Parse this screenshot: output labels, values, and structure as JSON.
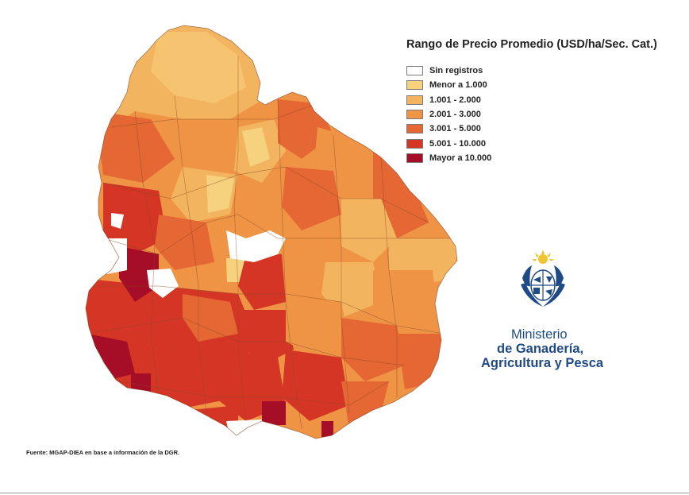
{
  "legend": {
    "title": "Rango de Precio Promedio (USD/ha/Sec. Cat.)",
    "items": [
      {
        "label": "Sin registros",
        "color": "#ffffff"
      },
      {
        "label": "Menor a 1.000",
        "color": "#f6d27e"
      },
      {
        "label": "1.001 - 2.000",
        "color": "#f3b45f"
      },
      {
        "label": "2.001 - 3.000",
        "color": "#ee9444"
      },
      {
        "label": "3.001 - 5.000",
        "color": "#e56733"
      },
      {
        "label": "5.001 - 10.000",
        "color": "#d43524"
      },
      {
        "label": "Mayor a 10.000",
        "color": "#a50e26"
      }
    ]
  },
  "ministry": {
    "line1": "Ministerio",
    "line2": "de Ganadería,",
    "line3": "Agricultura y Pesca",
    "color": "#1f4a86"
  },
  "source": "Fuente: MGAP-DIEA en base a información de la DGR."
}
